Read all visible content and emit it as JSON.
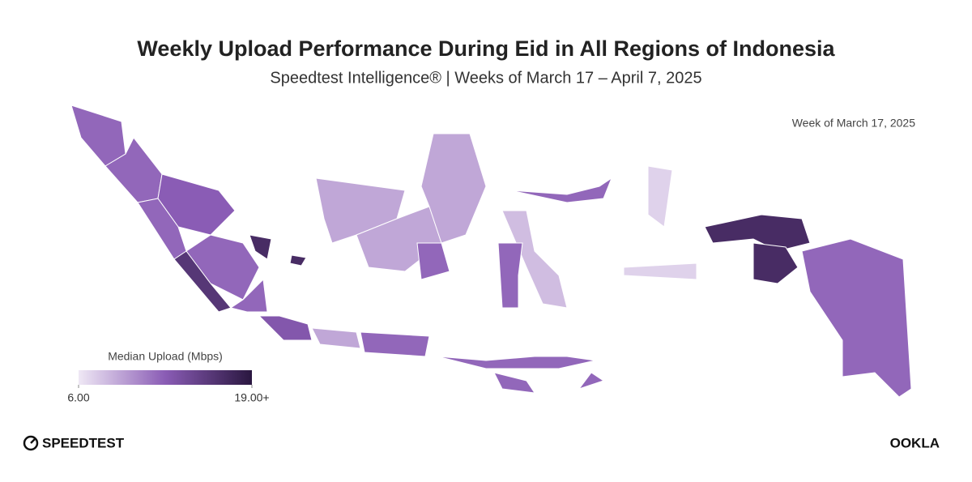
{
  "title": "Weekly Upload Performance During Eid in All Regions of Indonesia",
  "subtitle": "Speedtest Intelligence® | Weeks of March 17 – April 7, 2025",
  "week": "Week of March 17, 2025",
  "legend": {
    "title": "Median Upload (Mbps)",
    "ticks": [
      {
        "value": 6,
        "label": "6.00"
      },
      {
        "value": 19,
        "label": "19.00+"
      }
    ],
    "colors": [
      "#efe8f5",
      "#8a5cb5",
      "#2a1740"
    ]
  },
  "regions": {
    "values": [
      12,
      12,
      12.5,
      12,
      12,
      16,
      12,
      17,
      17,
      9,
      9,
      9,
      12,
      12,
      8,
      12,
      13,
      9,
      12,
      12,
      12,
      12,
      7,
      7,
      17,
      17,
      12
    ]
  },
  "footer": {
    "left": "SPEEDTEST",
    "right": "OOKLA"
  }
}
